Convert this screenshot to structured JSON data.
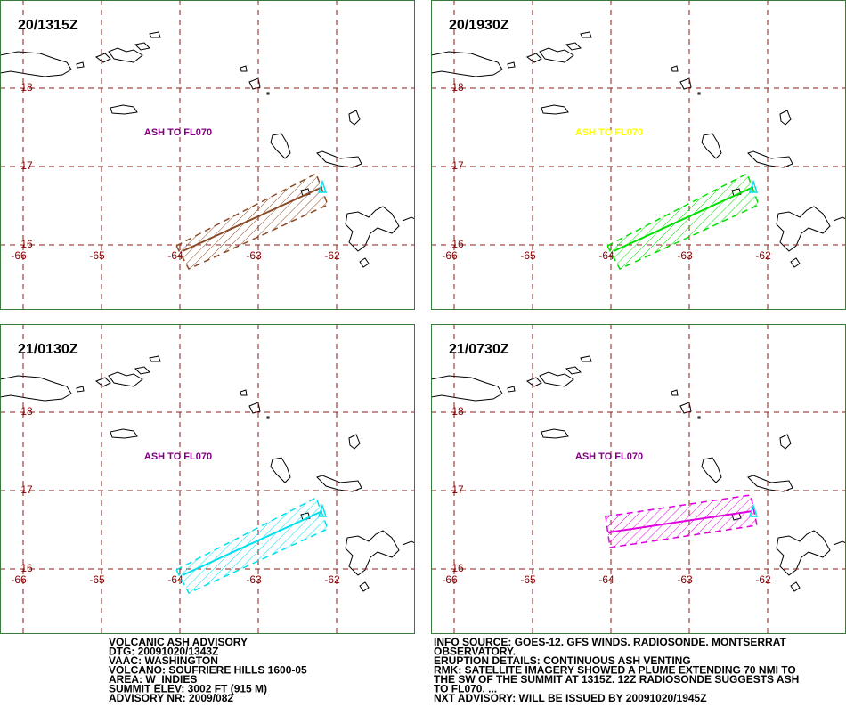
{
  "panels": [
    {
      "time": "20/1315Z",
      "label": "ASH TO FL070",
      "label_color": "#800080",
      "plume_color": "#8b4a26"
    },
    {
      "time": "20/1930Z",
      "label": "ASH  TO  FL070",
      "label_color": "#ffff00",
      "plume_color": "#00e000"
    },
    {
      "time": "21/0130Z",
      "label": "ASH TO FL070",
      "label_color": "#800080",
      "plume_color": "#00e0ee"
    },
    {
      "time": "21/0730Z",
      "label": "ASH TO FL070",
      "label_color": "#800080",
      "plume_color": "#e000e0"
    }
  ],
  "lats": [
    18,
    17,
    16
  ],
  "lons": [
    -66,
    -65,
    -64,
    -63,
    -62
  ],
  "advisory": {
    "left": [
      "VOLCANIC ASH ADVISORY",
      "DTG: 20091020/1343Z",
      "VAAC: WASHINGTON",
      "VOLCANO: SOUFRIERE HILLS 1600-05",
      "AREA: W_INDIES",
      "SUMMIT ELEV: 3002 FT (915 M)",
      "ADVISORY NR: 2009/082"
    ],
    "right": [
      "INFO SOURCE: GOES-12. GFS WINDS. RADIOSONDE. MONTSERRAT",
      "OBSERVATORY.",
      "ERUPTION DETAILS: CONTINUOUS ASH VENTING",
      "RMK: SATELLITE IMAGERY SHOWED A PLUME EXTENDING 70 NMI TO",
      "THE SW OF THE SUMMIT AT 1315Z. 12Z RADIOSONDE SUGGESTS ASH",
      "TO FL070. ...",
      "NXT ADVISORY: WILL BE ISSUED BY 20091020/1945Z"
    ]
  }
}
